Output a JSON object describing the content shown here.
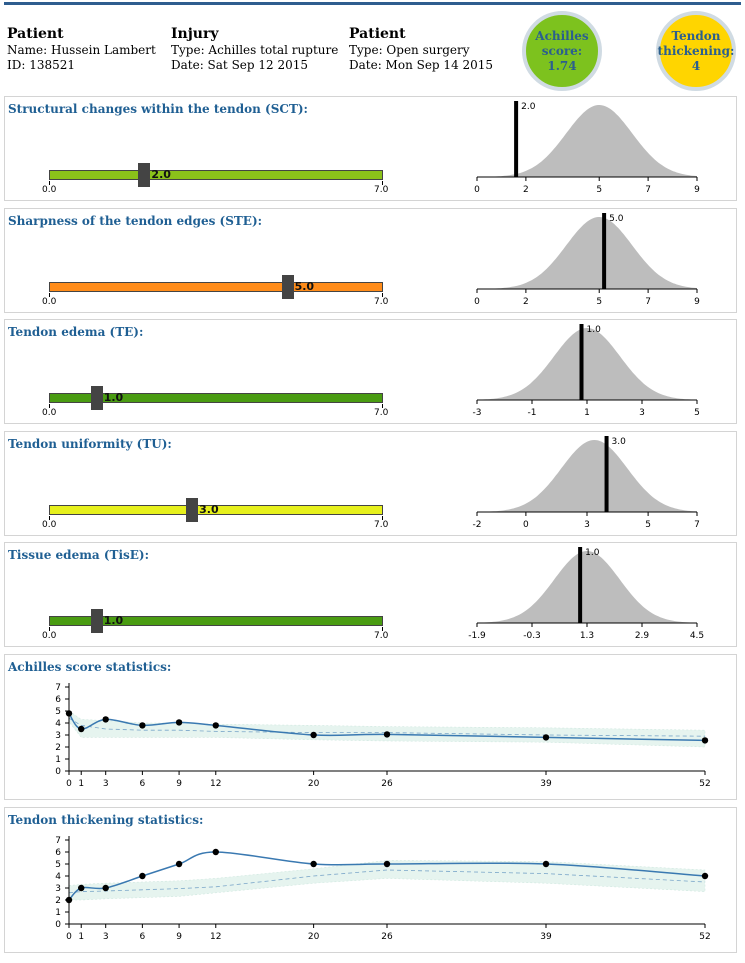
{
  "header": {
    "patient": {
      "title": "Patient",
      "name": "Name: Hussein Lambert",
      "id": "ID: 138521"
    },
    "injury": {
      "title": "Injury",
      "type": "Type: Achilles total rupture",
      "date": "Date: Sat Sep 12 2015"
    },
    "treatment": {
      "title": "Patient",
      "type": "Type: Open surgery",
      "date": "Date: Mon Sep 14 2015"
    }
  },
  "badges": {
    "achilles": {
      "line1": "Achilles",
      "line2": "score:",
      "value": "1.74",
      "color": "#7dc21e"
    },
    "thickening": {
      "line1": "Tendon",
      "line2": "thickening:",
      "value": "4",
      "color": "#ffd500"
    }
  },
  "scales": [
    {
      "title": "Structural changes within the tendon (SCT):",
      "value": 2.0,
      "value_label": "2.0",
      "min_label": "0.0",
      "max_label": "7.0",
      "color": "#8bc21a",
      "dist": {
        "ticks": [
          "0",
          "2",
          "5",
          "7",
          "9"
        ],
        "tick_vals": [
          0,
          2,
          5,
          7,
          9
        ],
        "xmin": 0,
        "xmax": 9,
        "mean": 5,
        "sd": 1.35,
        "marker": 1.6,
        "marker_label": "2.0"
      }
    },
    {
      "title": "Sharpness of the tendon edges (STE):",
      "value": 5.0,
      "value_label": "5.0",
      "min_label": "0.0",
      "max_label": "7.0",
      "color": "#ff8c1a",
      "dist": {
        "ticks": [
          "0",
          "2",
          "5",
          "7",
          "9"
        ],
        "tick_vals": [
          0,
          2,
          5,
          7,
          9
        ],
        "xmin": 0,
        "xmax": 9,
        "mean": 5,
        "sd": 1.35,
        "marker": 5.2,
        "marker_label": "5.0"
      }
    },
    {
      "title": "Tendon edema (TE):",
      "value": 1.0,
      "value_label": "1.0",
      "min_label": "0.0",
      "max_label": "7.0",
      "color": "#4a9c12",
      "dist": {
        "ticks": [
          "-3",
          "-1",
          "1",
          "3",
          "5"
        ],
        "tick_vals": [
          -3,
          -1,
          1,
          3,
          5
        ],
        "xmin": -3,
        "xmax": 5,
        "mean": 1,
        "sd": 1.2,
        "marker": 0.8,
        "marker_label": "1.0"
      }
    },
    {
      "title": "Tendon uniformity (TU):",
      "value": 3.0,
      "value_label": "3.0",
      "min_label": "0.0",
      "max_label": "7.0",
      "color": "#e6f01c",
      "dist": {
        "ticks": [
          "-2",
          "0",
          "3",
          "5",
          "7"
        ],
        "tick_vals": [
          -2,
          0,
          2.5,
          5,
          7
        ],
        "xmin": -2,
        "xmax": 7,
        "mean": 2.8,
        "sd": 1.35,
        "marker": 3.3,
        "marker_label": "3.0"
      }
    },
    {
      "title": "Tissue edema (TisE):",
      "value": 1.0,
      "value_label": "1.0",
      "min_label": "0.0",
      "max_label": "7.0",
      "color": "#4a9c12",
      "dist": {
        "ticks": [
          "-1.9",
          "-0.3",
          "1.3",
          "2.9",
          "4.5"
        ],
        "tick_vals": [
          -1.9,
          -0.3,
          1.3,
          2.9,
          4.5
        ],
        "xmin": -1.9,
        "xmax": 4.5,
        "mean": 1.3,
        "sd": 0.95,
        "marker": 1.1,
        "marker_label": "1.0"
      }
    }
  ],
  "chart_data": [
    {
      "type": "line",
      "title": "Achilles score statistics:",
      "x": [
        0,
        1,
        3,
        6,
        9,
        12,
        20,
        26,
        39,
        52
      ],
      "series": [
        {
          "values": [
            4.8,
            3.5,
            4.3,
            3.8,
            4.05,
            3.8,
            3.0,
            3.05,
            2.8,
            2.55
          ]
        }
      ],
      "reference_mean": [
        4.4,
        3.8,
        3.5,
        3.4,
        3.4,
        3.3,
        3.2,
        3.2,
        3.0,
        2.9
      ],
      "band_low": [
        4.1,
        2.8,
        2.8,
        2.8,
        2.8,
        2.8,
        2.6,
        2.5,
        2.4,
        2.0
      ],
      "band_high": [
        5.0,
        4.3,
        4.2,
        4.0,
        4.0,
        3.9,
        3.8,
        3.7,
        3.6,
        3.4
      ],
      "xlabel": "",
      "ylabel": "",
      "ylim": [
        0,
        7
      ],
      "yticks": [
        0,
        1,
        2,
        3,
        4,
        5,
        6,
        7
      ],
      "xticks": [
        0,
        1,
        3,
        6,
        9,
        12,
        20,
        26,
        39,
        52
      ]
    },
    {
      "type": "line",
      "title": "Tendon thickening statistics:",
      "x": [
        0,
        1,
        3,
        6,
        9,
        12,
        20,
        26,
        39,
        52
      ],
      "series": [
        {
          "values": [
            2.0,
            3.0,
            3.0,
            4.0,
            5.0,
            6.0,
            5.0,
            5.0,
            5.0,
            4.0
          ]
        }
      ],
      "reference_mean": [
        2.6,
        2.7,
        2.75,
        2.85,
        2.95,
        3.1,
        4.0,
        4.5,
        4.2,
        3.5
      ],
      "band_low": [
        2.0,
        2.0,
        2.1,
        2.2,
        2.3,
        2.6,
        3.4,
        3.8,
        3.4,
        2.7
      ],
      "band_high": [
        3.2,
        3.3,
        3.4,
        3.5,
        3.6,
        3.8,
        4.6,
        5.3,
        5.2,
        4.5
      ],
      "xlabel": "",
      "ylabel": "",
      "ylim": [
        0,
        7
      ],
      "yticks": [
        0,
        1,
        2,
        3,
        4,
        5,
        6,
        7
      ],
      "xticks": [
        0,
        1,
        3,
        6,
        9,
        12,
        20,
        26,
        39,
        52
      ]
    }
  ],
  "colors": {
    "line": "#3a79b1",
    "band": "#e6f4ef",
    "dist": "#bdbdbd"
  }
}
